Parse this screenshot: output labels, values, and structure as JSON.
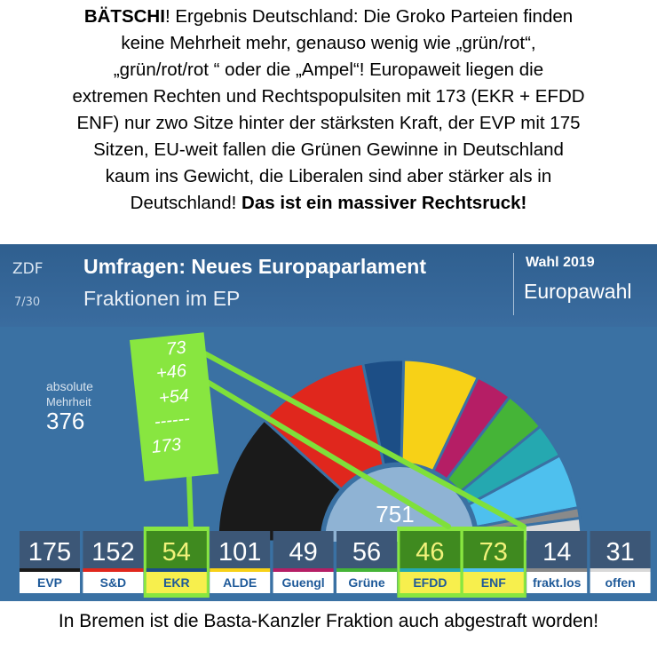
{
  "commentary": {
    "s1_bold": "BÄTSCHI",
    "s1_rest": "! Ergebnis Deutschland: Die Groko Parteien finden",
    "s2": "keine Mehrheit mehr, genauso wenig wie „grün/rot“,",
    "s3": "„grün/rot/rot “ oder die „Ampel“! Europaweit liegen die",
    "s4": "extremen Rechten und Rechtspopulsiten mit 173 (EKR + EFDD",
    "s5": "ENF) nur zwo Sitze hinter der stärksten Kraft, der EVP mit 175",
    "s6": "Sitzen, EU-weit fallen die Grünen Gewinne in Deutschland",
    "s7": "kaum ins Gewicht, die Liberalen sind aber stärker als in",
    "s8_rest": "Deutschland! ",
    "s8_bold": "Das ist ein massiver Rechtsruck!",
    "bottom": "In Bremen ist die Basta-Kanzler Fraktion auch abgestraft worden!"
  },
  "header": {
    "logo": "ZDF",
    "page": "7/30",
    "title": "Umfragen: Neues Europaparlament",
    "subtitle": "Fraktionen im EP",
    "wahl_year": "Wahl 2019",
    "wahl_name": "Europawahl"
  },
  "majority": {
    "label1": "absolute",
    "label2": "Mehrheit",
    "value": "376"
  },
  "annotation": {
    "l1": "73",
    "l2": "+46",
    "l3": "+54",
    "l4": "------",
    "l5": "173"
  },
  "chart_data": {
    "type": "bar",
    "title": "Umfragen: Neues Europaparlament",
    "subtitle": "Fraktionen im EP",
    "total": 751,
    "total_label": "751",
    "categories": [
      "EVP",
      "S&D",
      "EKR",
      "ALDE",
      "Guengl",
      "Grüne",
      "EFDD",
      "ENF",
      "frakt.los",
      "offen"
    ],
    "values": [
      175,
      152,
      54,
      101,
      49,
      56,
      46,
      73,
      14,
      31
    ],
    "colors": [
      "#1a1a1a",
      "#e0271d",
      "#1c4e86",
      "#f7d117",
      "#b51e65",
      "#45b437",
      "#25a8b0",
      "#4ec0ee",
      "#8a8a8a",
      "#d9d9d9"
    ],
    "highlighted": [
      "EKR",
      "EFDD",
      "ENF"
    ],
    "grid": false
  }
}
